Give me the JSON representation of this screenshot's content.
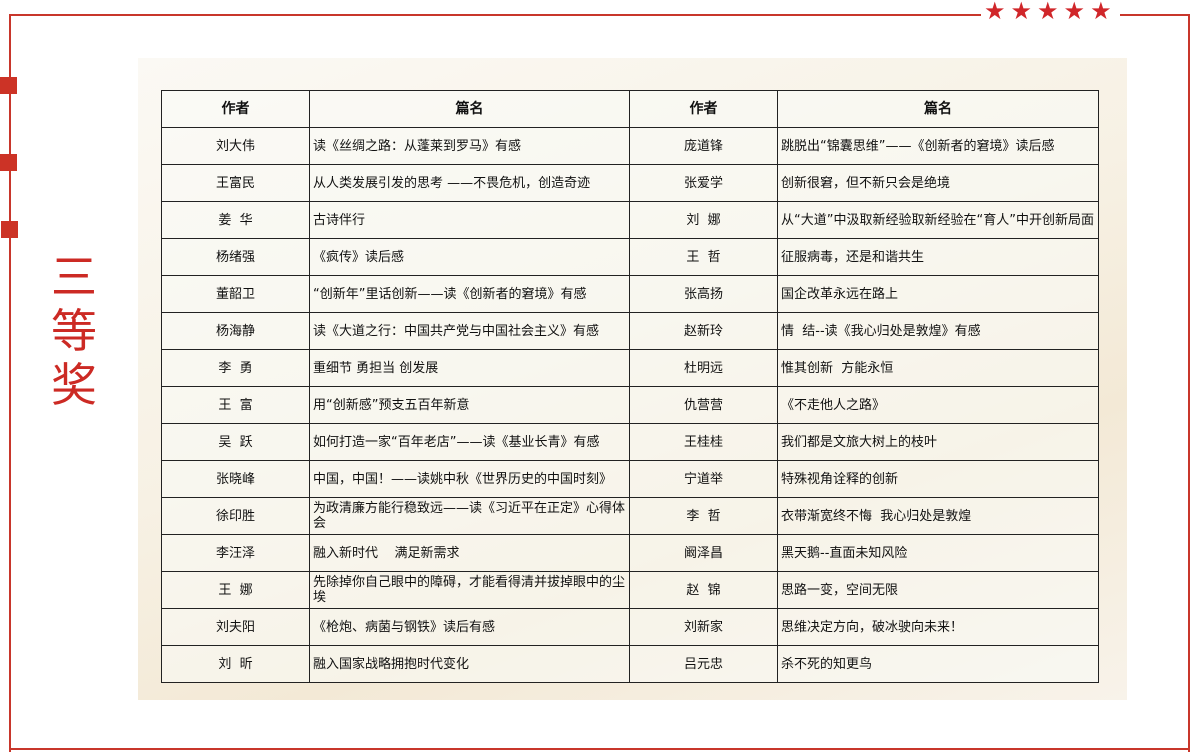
{
  "title": "三等奖",
  "decor": {
    "stars": 5,
    "accent": "#c8362b"
  },
  "headers": [
    "作者",
    "篇名",
    "作者",
    "篇名"
  ],
  "rows": [
    {
      "a1": "刘大伟",
      "t1": "读《丝绸之路：从蓬莱到罗马》有感",
      "a2": "庞道锋",
      "t2": "跳脱出“锦囊思维”——《创新者的窘境》读后感"
    },
    {
      "a1": "王富民",
      "t1": "从人类发展引发的思考 ——不畏危机，创造奇迹",
      "a2": "张爱学",
      "t2": "创新很窘，但不新只会是绝境"
    },
    {
      "a1": "姜  华",
      "t1": "古诗伴行",
      "a2": "刘  娜",
      "t2": "从“大道”中汲取新经验取新经验在“育人”中开创新局面"
    },
    {
      "a1": "杨绪强",
      "t1": "《疯传》读后感",
      "a2": "王  哲",
      "t2": "征服病毒，还是和谐共生"
    },
    {
      "a1": "董韶卫",
      "t1": "“创新年”里话创新——读《创新者的窘境》有感",
      "a2": "张高扬",
      "t2": "国企改革永远在路上"
    },
    {
      "a1": "杨海静",
      "t1": "读《大道之行：中国共产党与中国社会主义》有感",
      "a2": "赵新玲",
      "t2": "情  结--读《我心归处是敦煌》有感"
    },
    {
      "a1": "李  勇",
      "t1": "重细节 勇担当 创发展",
      "a2": "杜明远",
      "t2": "惟其创新  方能永恒"
    },
    {
      "a1": "王  富",
      "t1": "用“创新感”预支五百年新意",
      "a2": "仇营营",
      "t2": "《不走他人之路》"
    },
    {
      "a1": "吴  跃",
      "t1": "如何打造一家“百年老店”——读《基业长青》有感",
      "a2": "王桂桂",
      "t2": "我们都是文旅大树上的枝叶"
    },
    {
      "a1": "张晓峰",
      "t1": "中国，中国！——读姚中秋《世界历史的中国时刻》",
      "a2": "宁道举",
      "t2": "特殊视角诠释的创新"
    },
    {
      "a1": "徐印胜",
      "t1": "为政清廉方能行稳致远——读《习近平在正定》心得体会",
      "a2": "李  哲",
      "t2": "衣带渐宽终不悔  我心归处是敦煌"
    },
    {
      "a1": "李汪泽",
      "t1": "融入新时代    满足新需求",
      "a2": "阚泽昌",
      "t2": "黑天鹅--直面未知风险"
    },
    {
      "a1": "王  娜",
      "t1": "先除掉你自己眼中的障碍，才能看得清并拔掉眼中的尘埃",
      "a2": "赵  锦",
      "t2": "思路一变，空间无限"
    },
    {
      "a1": "刘夫阳",
      "t1": "《枪炮、病菌与钢铁》读后有感",
      "a2": "刘新家",
      "t2": "思维决定方向，破冰驶向未来！"
    },
    {
      "a1": "刘  昕",
      "t1": "融入国家战略拥抱时代变化",
      "a2": "吕元忠",
      "t2": "杀不死的知更鸟"
    }
  ]
}
